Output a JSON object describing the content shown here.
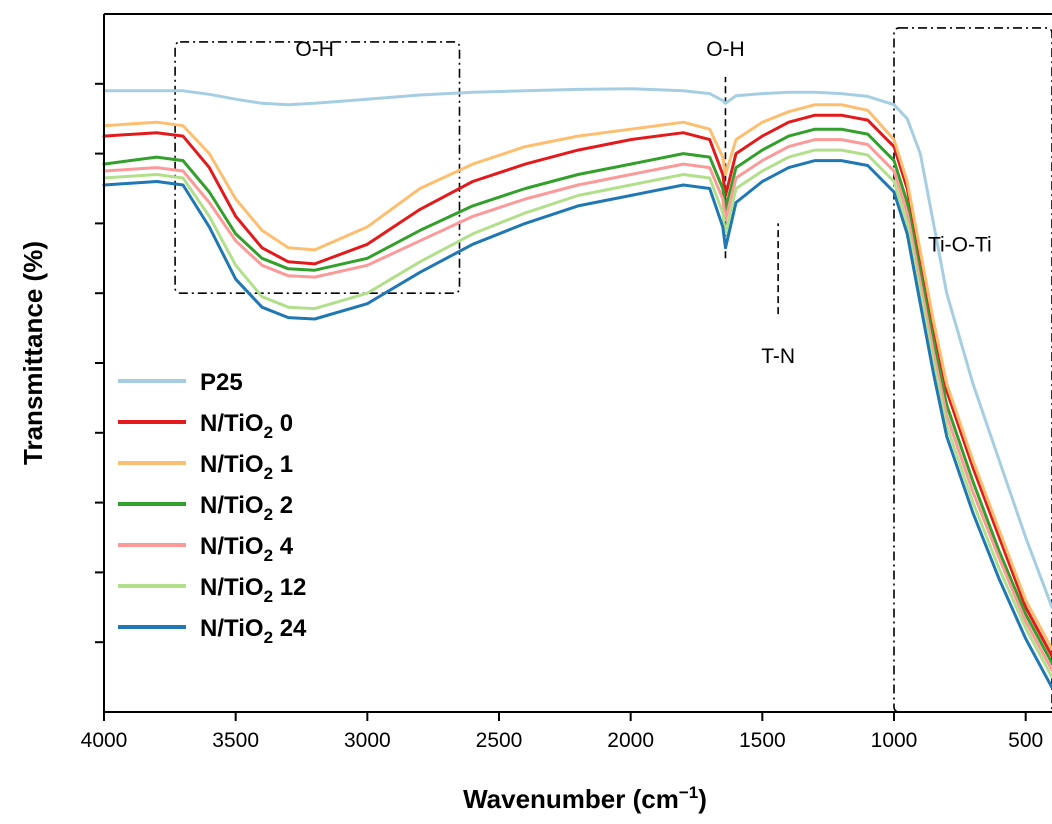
{
  "chart_data": {
    "type": "line",
    "xlabel": "Wavenumber (cm",
    "xlabel_sup": "−1",
    "xlabel_end": ")",
    "ylabel": "Transmittance (%)",
    "xlim": [
      4000,
      400
    ],
    "x_reversed": true,
    "ylim": [
      0,
      100
    ],
    "x_ticks": [
      4000,
      3500,
      3000,
      2500,
      2000,
      1500,
      1000,
      500
    ],
    "x_tick_labels": [
      "4000",
      "3500",
      "3000",
      "2500",
      "2000",
      "1500",
      "1000",
      "500"
    ],
    "y_tick_values": [
      10,
      20,
      30,
      40,
      50,
      60,
      70,
      80,
      90
    ],
    "y_tick_labels_shown": false,
    "grid": false,
    "legend_position": "left",
    "annotations": [
      {
        "text": "O-H",
        "x": 3200,
        "y": 94,
        "kind": "region",
        "x_from": 3730,
        "x_to": 2650,
        "y_from": 60,
        "y_to": 96
      },
      {
        "text": "O-H",
        "x": 1640,
        "y": 94,
        "kind": "line",
        "line_from": 65,
        "line_to": 91
      },
      {
        "text": "T-N",
        "x": 1440,
        "y": 50,
        "kind": "line",
        "line_from": 57,
        "line_to": 70
      },
      {
        "text": "Ti-O-Ti",
        "x": 750,
        "y": 66,
        "kind": "region",
        "x_from": 1000,
        "x_to": 400,
        "y_from": 0,
        "y_to": 98
      }
    ],
    "series": [
      {
        "name": "P25",
        "label_main": "P25",
        "label_sub": "",
        "label_end": "",
        "color": "#a6cee3",
        "x": [
          4000,
          3800,
          3700,
          3600,
          3500,
          3400,
          3300,
          3200,
          3000,
          2800,
          2600,
          2400,
          2200,
          2000,
          1800,
          1700,
          1650,
          1640,
          1600,
          1500,
          1400,
          1300,
          1200,
          1100,
          1000,
          950,
          900,
          850,
          800,
          700,
          600,
          500,
          400
        ],
        "y": [
          89,
          89,
          89,
          88.5,
          87.8,
          87.2,
          87.0,
          87.2,
          87.8,
          88.4,
          88.8,
          89.0,
          89.2,
          89.3,
          89.0,
          88.6,
          87.6,
          87.2,
          88.3,
          88.6,
          88.8,
          88.8,
          88.6,
          88.2,
          87.0,
          85,
          80,
          70,
          60,
          47,
          36,
          25,
          15
        ]
      },
      {
        "name": "N/TiO2 0",
        "label_main": "N/TiO",
        "label_sub": "2",
        "label_end": " 0",
        "color": "#e31a1c",
        "x": [
          4000,
          3800,
          3700,
          3600,
          3500,
          3400,
          3300,
          3200,
          3000,
          2800,
          2600,
          2400,
          2200,
          2000,
          1800,
          1700,
          1650,
          1640,
          1600,
          1500,
          1400,
          1300,
          1200,
          1100,
          1000,
          950,
          900,
          850,
          800,
          700,
          600,
          500,
          400
        ],
        "y": [
          82.5,
          83,
          82.5,
          78,
          71,
          66.5,
          64.5,
          64.2,
          67,
          72,
          76,
          78.5,
          80.5,
          82,
          83,
          82,
          77,
          74,
          80,
          82.5,
          84.5,
          85.5,
          85.5,
          84.8,
          81,
          75,
          65,
          55,
          46,
          35,
          25,
          15,
          8
        ]
      },
      {
        "name": "N/TiO2 1",
        "label_main": "N/TiO",
        "label_sub": "2",
        "label_end": " 1",
        "color": "#fdbf6f",
        "x": [
          4000,
          3800,
          3700,
          3600,
          3500,
          3400,
          3300,
          3200,
          3000,
          2800,
          2600,
          2400,
          2200,
          2000,
          1800,
          1700,
          1650,
          1640,
          1600,
          1500,
          1400,
          1300,
          1200,
          1100,
          1000,
          950,
          900,
          850,
          800,
          700,
          600,
          500,
          400
        ],
        "y": [
          84,
          84.5,
          84,
          80,
          73.5,
          69,
          66.5,
          66.2,
          69.5,
          75,
          78.5,
          81,
          82.5,
          83.5,
          84.5,
          83.5,
          79.5,
          77,
          82,
          84.5,
          86,
          87,
          87,
          86.2,
          82,
          76,
          66,
          56,
          47,
          36,
          26,
          16,
          9
        ]
      },
      {
        "name": "N/TiO2 2",
        "label_main": "N/TiO",
        "label_sub": "2",
        "label_end": " 2",
        "color": "#33a02c",
        "x": [
          4000,
          3800,
          3700,
          3600,
          3500,
          3400,
          3300,
          3200,
          3000,
          2800,
          2600,
          2400,
          2200,
          2000,
          1800,
          1700,
          1650,
          1640,
          1600,
          1500,
          1400,
          1300,
          1200,
          1100,
          1000,
          950,
          900,
          850,
          800,
          700,
          600,
          500,
          400
        ],
        "y": [
          78.5,
          79.5,
          79,
          74.5,
          68.5,
          65,
          63.5,
          63.3,
          65,
          69,
          72.5,
          75,
          77,
          78.5,
          80,
          79.5,
          75,
          72,
          78,
          80.5,
          82.5,
          83.5,
          83.5,
          82.8,
          79,
          73,
          63,
          53,
          44,
          33,
          23,
          14,
          7
        ]
      },
      {
        "name": "N/TiO2 4",
        "label_main": "N/TiO",
        "label_sub": "2",
        "label_end": " 4",
        "color": "#fb9a99",
        "x": [
          4000,
          3800,
          3700,
          3600,
          3500,
          3400,
          3300,
          3200,
          3000,
          2800,
          2600,
          2400,
          2200,
          2000,
          1800,
          1700,
          1650,
          1640,
          1600,
          1500,
          1400,
          1300,
          1200,
          1100,
          1000,
          950,
          900,
          850,
          800,
          700,
          600,
          500,
          400
        ],
        "y": [
          77.5,
          78,
          77.5,
          73,
          67.5,
          64,
          62.5,
          62.3,
          64,
          67.5,
          71,
          73.5,
          75.5,
          77,
          78.5,
          78,
          73.5,
          70.5,
          76.5,
          79,
          81,
          82,
          82,
          81.3,
          77.5,
          71.5,
          61.5,
          51.5,
          42.5,
          31.5,
          22,
          13,
          6
        ]
      },
      {
        "name": "N/TiO2 12",
        "label_main": "N/TiO",
        "label_sub": "2",
        "label_end": " 12",
        "color": "#b2df8a",
        "x": [
          4000,
          3800,
          3700,
          3600,
          3500,
          3400,
          3300,
          3200,
          3000,
          2800,
          2600,
          2400,
          2200,
          2000,
          1800,
          1700,
          1650,
          1640,
          1600,
          1500,
          1400,
          1300,
          1200,
          1100,
          1000,
          950,
          900,
          850,
          800,
          700,
          600,
          500,
          400
        ],
        "y": [
          76.5,
          77,
          76.5,
          71,
          64,
          59.5,
          58,
          57.8,
          60,
          64.5,
          68.5,
          71.5,
          74,
          75.5,
          77,
          76.5,
          71.5,
          68.5,
          75,
          77.5,
          79.5,
          80.5,
          80.5,
          79.8,
          76,
          70,
          60,
          50,
          41,
          30,
          20.5,
          12,
          5
        ]
      },
      {
        "name": "N/TiO2 24",
        "label_main": "N/TiO",
        "label_sub": "2",
        "label_end": " 24",
        "color": "#1f78b4",
        "x": [
          4000,
          3800,
          3700,
          3600,
          3500,
          3400,
          3300,
          3200,
          3000,
          2800,
          2600,
          2400,
          2200,
          2000,
          1800,
          1700,
          1650,
          1640,
          1600,
          1500,
          1400,
          1300,
          1200,
          1100,
          1000,
          950,
          900,
          850,
          800,
          700,
          600,
          500,
          400
        ],
        "y": [
          75.5,
          76,
          75.5,
          69.5,
          62,
          58,
          56.5,
          56.3,
          58.5,
          63,
          67,
          70,
          72.5,
          74,
          75.5,
          75,
          69.5,
          66.5,
          73,
          76,
          78,
          79,
          79,
          78.3,
          74.5,
          68.5,
          58.5,
          48.5,
          39.5,
          28.5,
          19,
          10.5,
          3.5
        ]
      }
    ]
  }
}
